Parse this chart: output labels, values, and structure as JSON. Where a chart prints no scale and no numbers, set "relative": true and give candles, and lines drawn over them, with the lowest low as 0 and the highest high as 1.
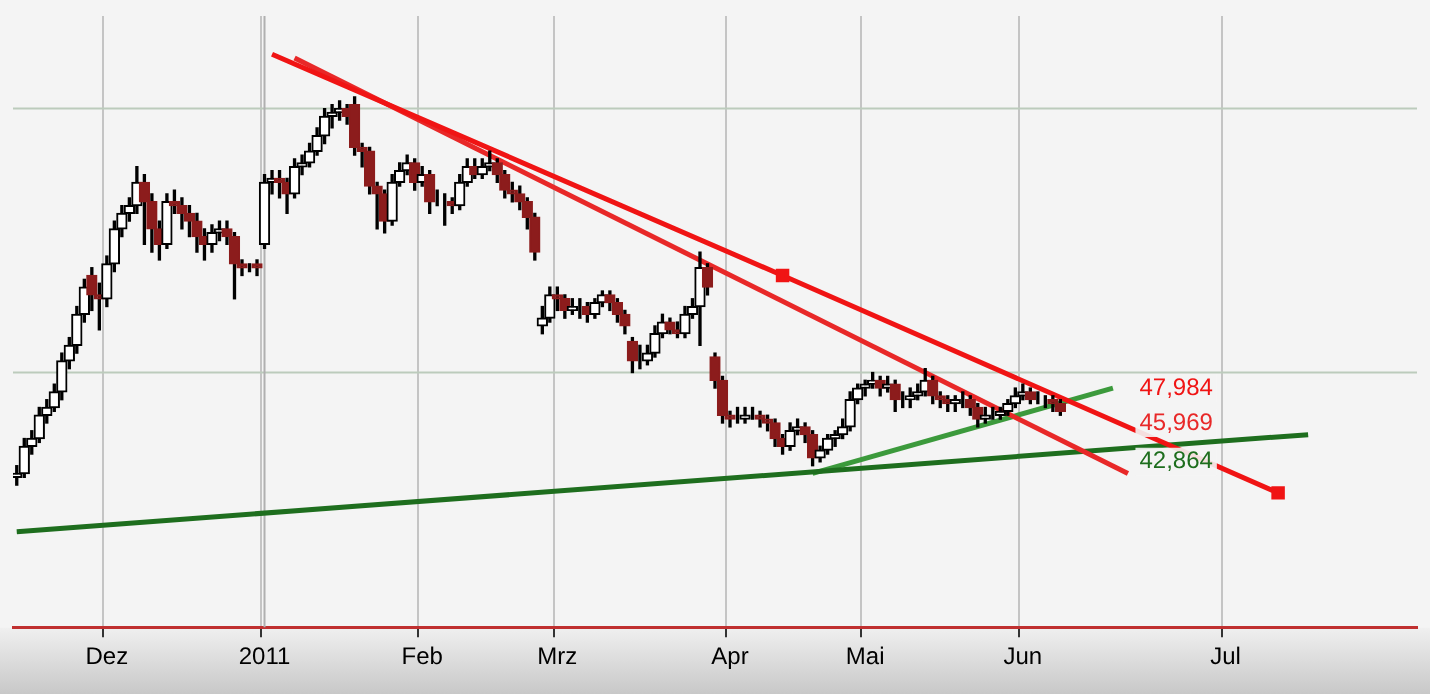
{
  "chart_data": {
    "type": "candlestick",
    "relative": true,
    "legend": false,
    "grid": "x",
    "categories": [
      null,
      null,
      null,
      null,
      null,
      null,
      null,
      null,
      null,
      null,
      null,
      null,
      "Dez",
      null,
      null,
      null,
      null,
      null,
      null,
      null,
      null,
      null,
      null,
      null,
      null,
      null,
      null,
      null,
      null,
      null,
      null,
      null,
      null,
      "2011",
      null,
      null,
      null,
      null,
      null,
      null,
      null,
      null,
      null,
      null,
      null,
      null,
      null,
      null,
      null,
      null,
      null,
      null,
      null,
      null,
      "Feb",
      null,
      null,
      null,
      null,
      null,
      null,
      null,
      null,
      null,
      null,
      null,
      null,
      null,
      null,
      null,
      null,
      null,
      "Mrz",
      null,
      null,
      null,
      null,
      null,
      null,
      null,
      null,
      null,
      null,
      null,
      null,
      null,
      null,
      null,
      null,
      null,
      null,
      null,
      null,
      null,
      null,
      "Apr",
      null,
      null,
      null,
      null,
      null,
      null,
      null,
      null,
      null,
      null,
      null,
      null,
      null,
      null,
      null,
      null,
      null,
      "Mai",
      null,
      null,
      null,
      null,
      null,
      null,
      null,
      null,
      null,
      null,
      null,
      null,
      null,
      null,
      null,
      null,
      null,
      null,
      null,
      null,
      "Jun",
      null,
      null,
      null,
      null,
      null,
      null,
      null,
      null,
      null,
      null,
      null,
      null,
      null,
      null,
      null,
      null,
      null,
      null,
      null,
      null,
      null,
      null,
      null,
      null,
      null,
      null,
      "Jul",
      null,
      null,
      null,
      null,
      null,
      null,
      null,
      null,
      null,
      null,
      null,
      null,
      null,
      null,
      null,
      null,
      null,
      null,
      null,
      null,
      null,
      null,
      null,
      null,
      null
    ],
    "ohlc": [
      [
        0.02,
        0.05,
        0.0,
        0.03
      ],
      [
        0.03,
        0.12,
        0.02,
        0.1
      ],
      [
        0.1,
        0.14,
        0.08,
        0.12
      ],
      [
        0.12,
        0.2,
        0.11,
        0.18
      ],
      [
        0.18,
        0.22,
        0.16,
        0.2
      ],
      [
        0.2,
        0.26,
        0.19,
        0.24
      ],
      [
        0.24,
        0.34,
        0.22,
        0.32
      ],
      [
        0.32,
        0.38,
        0.3,
        0.36
      ],
      [
        0.36,
        0.46,
        0.34,
        0.44
      ],
      [
        0.44,
        0.53,
        0.42,
        0.51
      ],
      [
        0.54,
        0.56,
        0.45,
        0.49
      ],
      [
        0.49,
        0.52,
        0.4,
        0.48
      ],
      [
        0.48,
        0.59,
        0.46,
        0.57
      ],
      [
        0.57,
        0.68,
        0.55,
        0.66
      ],
      [
        0.66,
        0.72,
        0.64,
        0.7
      ],
      [
        0.7,
        0.74,
        0.68,
        0.72
      ],
      [
        0.72,
        0.82,
        0.7,
        0.78
      ],
      [
        0.78,
        0.8,
        0.62,
        0.73
      ],
      [
        0.73,
        0.75,
        0.6,
        0.66
      ],
      [
        0.66,
        0.68,
        0.58,
        0.62
      ],
      [
        0.62,
        0.75,
        0.61,
        0.73
      ],
      [
        0.73,
        0.76,
        0.7,
        0.72
      ],
      [
        0.72,
        0.74,
        0.66,
        0.7
      ],
      [
        0.7,
        0.72,
        0.64,
        0.68
      ],
      [
        0.68,
        0.7,
        0.6,
        0.64
      ],
      [
        0.64,
        0.66,
        0.58,
        0.62
      ],
      [
        0.62,
        0.67,
        0.6,
        0.65
      ],
      [
        0.65,
        0.68,
        0.63,
        0.66
      ],
      [
        0.66,
        0.68,
        0.62,
        0.64
      ],
      [
        0.64,
        0.65,
        0.48,
        0.57
      ],
      [
        0.57,
        0.58,
        0.54,
        0.56
      ],
      [
        0.56,
        0.57,
        0.55,
        0.56
      ],
      [
        0.57,
        0.58,
        0.54,
        0.56
      ],
      [
        0.62,
        0.8,
        0.61,
        0.78
      ],
      [
        0.78,
        0.81,
        0.75,
        0.79
      ],
      [
        0.79,
        0.81,
        0.74,
        0.78
      ],
      [
        0.78,
        0.79,
        0.7,
        0.75
      ],
      [
        0.75,
        0.84,
        0.74,
        0.82
      ],
      [
        0.82,
        0.85,
        0.8,
        0.83
      ],
      [
        0.83,
        0.88,
        0.82,
        0.86
      ],
      [
        0.86,
        0.92,
        0.85,
        0.9
      ],
      [
        0.9,
        0.97,
        0.88,
        0.95
      ],
      [
        0.95,
        0.98,
        0.92,
        0.96
      ],
      [
        0.96,
        0.99,
        0.94,
        0.97
      ],
      [
        0.97,
        0.98,
        0.93,
        0.95
      ],
      [
        0.98,
        1.0,
        0.85,
        0.87
      ],
      [
        0.87,
        0.88,
        0.82,
        0.86
      ],
      [
        0.86,
        0.87,
        0.75,
        0.77
      ],
      [
        0.77,
        0.78,
        0.66,
        0.75
      ],
      [
        0.75,
        0.76,
        0.65,
        0.68
      ],
      [
        0.68,
        0.8,
        0.67,
        0.78
      ],
      [
        0.78,
        0.83,
        0.77,
        0.81
      ],
      [
        0.81,
        0.85,
        0.8,
        0.83
      ],
      [
        0.83,
        0.84,
        0.76,
        0.78
      ],
      [
        0.78,
        0.82,
        0.77,
        0.8
      ],
      [
        0.8,
        0.81,
        0.7,
        0.73
      ],
      [
        0.73,
        0.76,
        0.72,
        0.73
      ],
      [
        0.73,
        0.75,
        0.67,
        0.73
      ],
      [
        0.73,
        0.74,
        0.7,
        0.72
      ],
      [
        0.72,
        0.8,
        0.71,
        0.78
      ],
      [
        0.78,
        0.84,
        0.77,
        0.82
      ],
      [
        0.82,
        0.84,
        0.79,
        0.8
      ],
      [
        0.8,
        0.84,
        0.79,
        0.82
      ],
      [
        0.82,
        0.86,
        0.81,
        0.83
      ],
      [
        0.83,
        0.84,
        0.78,
        0.8
      ],
      [
        0.8,
        0.81,
        0.74,
        0.76
      ],
      [
        0.76,
        0.78,
        0.73,
        0.75
      ],
      [
        0.75,
        0.77,
        0.71,
        0.73
      ],
      [
        0.73,
        0.74,
        0.66,
        0.69
      ],
      [
        0.69,
        0.7,
        0.58,
        0.6
      ],
      [
        0.41,
        0.46,
        0.39,
        0.43
      ],
      [
        0.43,
        0.51,
        0.42,
        0.49
      ],
      [
        0.49,
        0.51,
        0.45,
        0.48
      ],
      [
        0.48,
        0.49,
        0.43,
        0.45
      ],
      [
        0.45,
        0.48,
        0.44,
        0.46
      ],
      [
        0.46,
        0.48,
        0.43,
        0.46
      ],
      [
        0.46,
        0.47,
        0.42,
        0.44
      ],
      [
        0.44,
        0.48,
        0.43,
        0.47
      ],
      [
        0.47,
        0.5,
        0.46,
        0.49
      ],
      [
        0.49,
        0.5,
        0.45,
        0.47
      ],
      [
        0.47,
        0.48,
        0.42,
        0.44
      ],
      [
        0.44,
        0.45,
        0.39,
        0.41
      ],
      [
        0.37,
        0.38,
        0.29,
        0.32
      ],
      [
        0.32,
        0.36,
        0.3,
        0.32
      ],
      [
        0.32,
        0.36,
        0.31,
        0.34
      ],
      [
        0.34,
        0.41,
        0.33,
        0.39
      ],
      [
        0.39,
        0.44,
        0.38,
        0.42
      ],
      [
        0.42,
        0.43,
        0.39,
        0.4
      ],
      [
        0.4,
        0.42,
        0.38,
        0.39
      ],
      [
        0.39,
        0.46,
        0.38,
        0.44
      ],
      [
        0.44,
        0.48,
        0.43,
        0.46
      ],
      [
        0.46,
        0.6,
        0.36,
        0.56
      ],
      [
        0.56,
        0.57,
        0.49,
        0.51
      ],
      [
        0.33,
        0.34,
        0.25,
        0.27
      ],
      [
        0.27,
        0.28,
        0.16,
        0.18
      ],
      [
        0.18,
        0.19,
        0.15,
        0.17
      ],
      [
        0.17,
        0.2,
        0.16,
        0.17
      ],
      [
        0.17,
        0.2,
        0.16,
        0.18
      ],
      [
        0.18,
        0.2,
        0.17,
        0.18
      ],
      [
        0.18,
        0.19,
        0.15,
        0.17
      ],
      [
        0.17,
        0.18,
        0.14,
        0.16
      ],
      [
        0.16,
        0.17,
        0.1,
        0.12
      ],
      [
        0.12,
        0.13,
        0.08,
        0.1
      ],
      [
        0.1,
        0.16,
        0.09,
        0.14
      ],
      [
        0.14,
        0.17,
        0.13,
        0.15
      ],
      [
        0.15,
        0.16,
        0.11,
        0.13
      ],
      [
        0.13,
        0.14,
        0.05,
        0.07
      ],
      [
        0.07,
        0.1,
        0.06,
        0.09
      ],
      [
        0.09,
        0.13,
        0.08,
        0.12
      ],
      [
        0.12,
        0.14,
        0.1,
        0.13
      ],
      [
        0.13,
        0.17,
        0.12,
        0.15
      ],
      [
        0.15,
        0.24,
        0.14,
        0.22
      ],
      [
        0.22,
        0.26,
        0.21,
        0.25
      ],
      [
        0.25,
        0.27,
        0.23,
        0.26
      ],
      [
        0.26,
        0.29,
        0.25,
        0.27
      ],
      [
        0.27,
        0.28,
        0.23,
        0.25
      ],
      [
        0.25,
        0.28,
        0.24,
        0.26
      ],
      [
        0.26,
        0.27,
        0.19,
        0.22
      ],
      [
        0.22,
        0.24,
        0.2,
        0.22
      ],
      [
        0.22,
        0.25,
        0.2,
        0.23
      ],
      [
        0.23,
        0.26,
        0.22,
        0.24
      ],
      [
        0.24,
        0.3,
        0.23,
        0.27
      ],
      [
        0.27,
        0.28,
        0.21,
        0.23
      ],
      [
        0.23,
        0.24,
        0.2,
        0.22
      ],
      [
        0.22,
        0.23,
        0.19,
        0.21
      ],
      [
        0.21,
        0.23,
        0.19,
        0.22
      ],
      [
        0.22,
        0.24,
        0.2,
        0.22
      ],
      [
        0.22,
        0.23,
        0.18,
        0.2
      ],
      [
        0.2,
        0.21,
        0.15,
        0.17
      ],
      [
        0.17,
        0.2,
        0.16,
        0.18
      ],
      [
        0.18,
        0.2,
        0.17,
        0.18
      ],
      [
        0.18,
        0.2,
        0.17,
        0.19
      ],
      [
        0.19,
        0.22,
        0.18,
        0.21
      ],
      [
        0.21,
        0.25,
        0.2,
        0.23
      ],
      [
        0.23,
        0.26,
        0.22,
        0.24
      ],
      [
        0.24,
        0.25,
        0.21,
        0.22
      ],
      [
        0.22,
        0.24,
        0.21,
        0.22
      ],
      [
        0.22,
        0.23,
        0.2,
        0.22
      ],
      [
        0.22,
        0.23,
        0.19,
        0.21
      ],
      [
        0.21,
        0.22,
        0.18,
        0.19
      ],
      null,
      null,
      null,
      null,
      null,
      null,
      null,
      null,
      null,
      null,
      null,
      null,
      null,
      null,
      null,
      null,
      null,
      null,
      null,
      null,
      null,
      null,
      null,
      null,
      null,
      null,
      null,
      null,
      null,
      null,
      null,
      null,
      null,
      null,
      null,
      null,
      null,
      null,
      null,
      null,
      null,
      null,
      null,
      null,
      null,
      null,
      null
    ],
    "series": [
      {
        "type": "line",
        "color": "#f01414",
        "marker": "square",
        "values": [
          null,
          null,
          null,
          null,
          null,
          null,
          null,
          null,
          null,
          null,
          null,
          null,
          null,
          null,
          null,
          null,
          null,
          null,
          null,
          null,
          null,
          null,
          null,
          null,
          null,
          null,
          null,
          null,
          null,
          null,
          null,
          null,
          null,
          null,
          1.11,
          null,
          null,
          null,
          null,
          null,
          null,
          null,
          null,
          null,
          null,
          null,
          null,
          null,
          null,
          null,
          null,
          null,
          null,
          null,
          null,
          null,
          null,
          null,
          null,
          null,
          null,
          null,
          null,
          null,
          null,
          null,
          null,
          null,
          null,
          null,
          null,
          null,
          null,
          null,
          null,
          null,
          null,
          null,
          null,
          null,
          null,
          null,
          null,
          null,
          null,
          null,
          null,
          null,
          null,
          null,
          null,
          null,
          null,
          null,
          null,
          null,
          null,
          null,
          null,
          null,
          null,
          null,
          0.54,
          null,
          null,
          null,
          null,
          null,
          null,
          null,
          null,
          null,
          null,
          null,
          null,
          null,
          null,
          null,
          null,
          null,
          null,
          null,
          null,
          null,
          null,
          null,
          null,
          null,
          null,
          null,
          null,
          null,
          null,
          null,
          null,
          null,
          null,
          null,
          null,
          null,
          null,
          null,
          null,
          null,
          null,
          null,
          null,
          null,
          null,
          null,
          null,
          null,
          null,
          null,
          null,
          null,
          null,
          null,
          null,
          null,
          null,
          null,
          null,
          null,
          null,
          null,
          null,
          null,
          -0.02,
          null,
          null,
          null,
          null,
          null,
          null,
          null,
          null,
          null,
          null,
          null,
          null,
          null,
          null,
          null,
          null,
          null,
          null
        ]
      },
      {
        "type": "line",
        "color": "#e82828",
        "values": [
          null,
          null,
          null,
          null,
          null,
          null,
          null,
          null,
          null,
          null,
          null,
          null,
          null,
          null,
          null,
          null,
          null,
          null,
          null,
          null,
          null,
          null,
          null,
          null,
          null,
          null,
          null,
          null,
          null,
          null,
          null,
          null,
          null,
          null,
          null,
          null,
          null,
          1.1,
          null,
          null,
          null,
          null,
          null,
          null,
          null,
          null,
          null,
          null,
          null,
          null,
          null,
          null,
          null,
          null,
          null,
          null,
          null,
          null,
          null,
          null,
          null,
          null,
          null,
          null,
          null,
          null,
          null,
          null,
          null,
          null,
          null,
          null,
          null,
          null,
          null,
          null,
          null,
          null,
          null,
          null,
          null,
          null,
          null,
          null,
          null,
          null,
          null,
          null,
          null,
          null,
          null,
          null,
          null,
          null,
          null,
          null,
          null,
          null,
          null,
          null,
          null,
          null,
          null,
          null,
          null,
          null,
          null,
          null,
          null,
          null,
          null,
          null,
          null,
          null,
          null,
          null,
          null,
          null,
          null,
          null,
          null,
          null,
          null,
          null,
          null,
          null,
          null,
          null,
          null,
          null,
          null,
          null,
          null,
          null,
          null,
          null,
          null,
          null,
          null,
          null,
          null,
          null,
          null,
          null,
          null,
          null,
          null,
          null,
          0.03,
          null,
          null,
          null,
          null,
          null,
          null,
          null,
          null,
          null,
          null,
          null,
          null,
          null,
          null,
          null,
          null,
          null,
          null,
          null,
          null,
          null,
          null,
          null,
          null,
          null,
          null,
          null,
          null,
          null,
          null,
          null,
          null,
          null,
          null,
          null,
          null,
          null,
          null
        ]
      },
      {
        "type": "line",
        "color": "#1e6e1e",
        "values": [
          -0.12,
          null,
          null,
          null,
          null,
          null,
          null,
          null,
          null,
          null,
          null,
          null,
          null,
          null,
          null,
          null,
          null,
          null,
          null,
          null,
          null,
          null,
          null,
          null,
          null,
          null,
          null,
          null,
          null,
          null,
          null,
          null,
          null,
          null,
          null,
          null,
          null,
          null,
          null,
          null,
          null,
          null,
          null,
          null,
          null,
          null,
          null,
          null,
          null,
          null,
          null,
          null,
          null,
          null,
          null,
          null,
          null,
          null,
          null,
          null,
          null,
          null,
          null,
          null,
          null,
          null,
          null,
          null,
          null,
          null,
          null,
          null,
          null,
          null,
          null,
          null,
          null,
          null,
          null,
          null,
          null,
          null,
          null,
          null,
          null,
          null,
          null,
          null,
          null,
          null,
          null,
          null,
          null,
          null,
          null,
          null,
          null,
          null,
          null,
          null,
          null,
          null,
          null,
          null,
          null,
          null,
          null,
          null,
          null,
          null,
          null,
          null,
          null,
          null,
          null,
          null,
          null,
          null,
          null,
          null,
          null,
          null,
          null,
          null,
          null,
          null,
          null,
          null,
          null,
          null,
          null,
          null,
          null,
          null,
          null,
          null,
          null,
          null,
          null,
          null,
          null,
          null,
          null,
          null,
          null,
          null,
          null,
          null,
          null,
          null,
          null,
          null,
          null,
          null,
          null,
          null,
          null,
          null,
          null,
          null,
          null,
          null,
          null,
          null,
          null,
          null,
          null,
          null,
          null,
          null,
          null,
          null,
          0.13,
          null,
          null,
          null,
          null,
          null,
          null,
          null,
          null,
          null,
          null,
          null,
          null,
          null,
          null
        ]
      },
      {
        "type": "line",
        "color": "#3c9a3c",
        "values": [
          null,
          null,
          null,
          null,
          null,
          null,
          null,
          null,
          null,
          null,
          null,
          null,
          null,
          null,
          null,
          null,
          null,
          null,
          null,
          null,
          null,
          null,
          null,
          null,
          null,
          null,
          null,
          null,
          null,
          null,
          null,
          null,
          null,
          null,
          null,
          null,
          null,
          null,
          null,
          null,
          null,
          null,
          null,
          null,
          null,
          null,
          null,
          null,
          null,
          null,
          null,
          null,
          null,
          null,
          null,
          null,
          null,
          null,
          null,
          null,
          null,
          null,
          null,
          null,
          null,
          null,
          null,
          null,
          null,
          null,
          null,
          null,
          null,
          null,
          null,
          null,
          null,
          null,
          null,
          null,
          null,
          null,
          null,
          null,
          null,
          null,
          null,
          null,
          null,
          null,
          null,
          null,
          null,
          null,
          null,
          null,
          null,
          null,
          null,
          null,
          null,
          null,
          null,
          null,
          null,
          null,
          0.03,
          null,
          null,
          null,
          null,
          null,
          null,
          null,
          null,
          null,
          null,
          null,
          null,
          null,
          null,
          null,
          null,
          null,
          null,
          null,
          null,
          null,
          null,
          null,
          null,
          null,
          null,
          null,
          null,
          null,
          null,
          null,
          null,
          null,
          null,
          null,
          null,
          null,
          null,
          null,
          0.25,
          null,
          null,
          null,
          null,
          null,
          null,
          null,
          null,
          null,
          null,
          null,
          null,
          null,
          null,
          null,
          null,
          null,
          null,
          null,
          null,
          null,
          null,
          null,
          null,
          null,
          null,
          null,
          null,
          null,
          null,
          null,
          null,
          null,
          null,
          null,
          null,
          null,
          null,
          null,
          null
        ]
      }
    ],
    "ref_lines": [
      {
        "axis": "y",
        "value": 0.97,
        "color": "#bccbbc"
      },
      {
        "axis": "y",
        "value": 0.29,
        "color": "#bccbbc"
      },
      {
        "axis": "x",
        "value": "2011",
        "color": "#b0b0b0"
      }
    ],
    "annotations": [
      {
        "text": "47,984",
        "y": 0.25
      },
      {
        "text": "45,969",
        "y": 0.16
      },
      {
        "text": "42,864",
        "y": 0.06
      }
    ]
  }
}
